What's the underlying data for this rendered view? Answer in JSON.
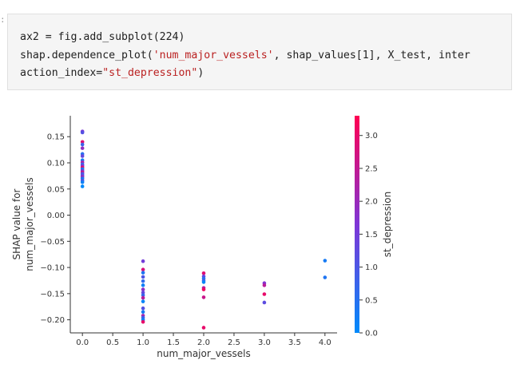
{
  "cell": {
    "prompt": ":",
    "code": {
      "line1": "ax2 = fig.add_subplot(224)",
      "line2_pre": "shap.dependence_plot(",
      "line2_str": "'num_major_vessels'",
      "line2_post": ", shap_values[1], X_test, inter",
      "line3_pre": "action_index=",
      "line3_str": "\"st_depression\"",
      "line3_post": ")"
    }
  },
  "chart_data": {
    "type": "scatter",
    "xlabel": "num_major_vessels",
    "ylabel_line1": "SHAP value for",
    "ylabel_line2": "num_major_vessels",
    "xlim": [
      -0.2,
      4.2
    ],
    "ylim": [
      -0.225,
      0.19
    ],
    "x_ticks": [
      "0.0",
      "0.5",
      "1.0",
      "1.5",
      "2.0",
      "2.5",
      "3.0",
      "3.5",
      "4.0"
    ],
    "y_ticks": [
      "0.15",
      "0.10",
      "0.05",
      "0.00",
      "−0.05",
      "−0.10",
      "−0.15",
      "−0.20"
    ],
    "colorbar": {
      "label": "st_depression",
      "range": [
        0.0,
        3.3
      ],
      "ticks": [
        "0.0",
        "0.5",
        "1.0",
        "1.5",
        "2.0",
        "2.5",
        "3.0"
      ],
      "color_low": "#008afb",
      "color_mid": "#7e35d6",
      "color_high": "#ff0052"
    },
    "points": [
      {
        "x": 0,
        "y": 0.16,
        "c": 1.6
      },
      {
        "x": 0,
        "y": 0.158,
        "c": 1.1
      },
      {
        "x": 0,
        "y": 0.14,
        "c": 2.9
      },
      {
        "x": 0,
        "y": 0.135,
        "c": 0.8
      },
      {
        "x": 0,
        "y": 0.128,
        "c": 1.9
      },
      {
        "x": 0,
        "y": 0.117,
        "c": 0.5
      },
      {
        "x": 0,
        "y": 0.113,
        "c": 1.3
      },
      {
        "x": 0,
        "y": 0.105,
        "c": 0.3
      },
      {
        "x": 0,
        "y": 0.101,
        "c": 2.2
      },
      {
        "x": 0,
        "y": 0.097,
        "c": 0.6
      },
      {
        "x": 0,
        "y": 0.094,
        "c": 1.7
      },
      {
        "x": 0,
        "y": 0.091,
        "c": 3.1
      },
      {
        "x": 0,
        "y": 0.088,
        "c": 0.1
      },
      {
        "x": 0,
        "y": 0.085,
        "c": 1.4
      },
      {
        "x": 0,
        "y": 0.082,
        "c": 2.6
      },
      {
        "x": 0,
        "y": 0.079,
        "c": 0.9
      },
      {
        "x": 0,
        "y": 0.076,
        "c": 1.2
      },
      {
        "x": 0,
        "y": 0.073,
        "c": 2.0
      },
      {
        "x": 0,
        "y": 0.07,
        "c": 0.4
      },
      {
        "x": 0,
        "y": 0.066,
        "c": 1.0
      },
      {
        "x": 0,
        "y": 0.063,
        "c": 0.2
      },
      {
        "x": 0,
        "y": 0.055,
        "c": 0.0
      },
      {
        "x": 1,
        "y": -0.088,
        "c": 1.5
      },
      {
        "x": 1,
        "y": -0.104,
        "c": 2.8
      },
      {
        "x": 1,
        "y": -0.11,
        "c": 0.4
      },
      {
        "x": 1,
        "y": -0.118,
        "c": 1.0
      },
      {
        "x": 1,
        "y": -0.126,
        "c": 0.6
      },
      {
        "x": 1,
        "y": -0.134,
        "c": 0.2
      },
      {
        "x": 1,
        "y": -0.142,
        "c": 1.8
      },
      {
        "x": 1,
        "y": -0.148,
        "c": 1.3
      },
      {
        "x": 1,
        "y": -0.153,
        "c": 0.7
      },
      {
        "x": 1,
        "y": -0.158,
        "c": 2.4
      },
      {
        "x": 1,
        "y": -0.165,
        "c": 0.1
      },
      {
        "x": 1,
        "y": -0.178,
        "c": 1.1
      },
      {
        "x": 1,
        "y": -0.185,
        "c": 0.3
      },
      {
        "x": 1,
        "y": -0.192,
        "c": 2.1
      },
      {
        "x": 1,
        "y": -0.196,
        "c": 0.8
      },
      {
        "x": 1,
        "y": -0.2,
        "c": 0.2
      },
      {
        "x": 1,
        "y": -0.204,
        "c": 3.0
      },
      {
        "x": 2,
        "y": -0.111,
        "c": 2.9
      },
      {
        "x": 2,
        "y": -0.117,
        "c": 1.4
      },
      {
        "x": 2,
        "y": -0.121,
        "c": 0.5
      },
      {
        "x": 2,
        "y": -0.125,
        "c": 0.9
      },
      {
        "x": 2,
        "y": -0.128,
        "c": 0.1
      },
      {
        "x": 2,
        "y": -0.139,
        "c": 2.3
      },
      {
        "x": 2,
        "y": -0.142,
        "c": 3.1
      },
      {
        "x": 2,
        "y": -0.157,
        "c": 2.6
      },
      {
        "x": 2,
        "y": -0.215,
        "c": 3.0
      },
      {
        "x": 3,
        "y": -0.13,
        "c": 1.7
      },
      {
        "x": 3,
        "y": -0.134,
        "c": 2.4
      },
      {
        "x": 3,
        "y": -0.151,
        "c": 3.0
      },
      {
        "x": 3,
        "y": -0.167,
        "c": 1.2
      },
      {
        "x": 4,
        "y": -0.087,
        "c": 0.3
      },
      {
        "x": 4,
        "y": -0.119,
        "c": 0.4
      }
    ]
  }
}
